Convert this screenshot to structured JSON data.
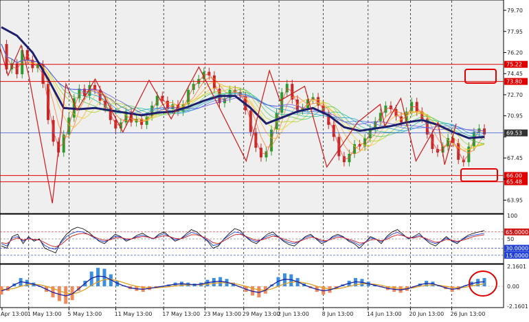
{
  "colors": {
    "background": "#ffffff",
    "plot_bg": "#efefef",
    "grid": "#000000",
    "bull_candle": "#2e9a2e",
    "bear_candle": "#c62828",
    "ma_main": "#1b1f6e",
    "level_line": "#e00000",
    "price_line": "#3355cc",
    "zigzag": "#d01818",
    "rsi_black": "#111111",
    "rsi_blue": "#1f3fd6",
    "rsi_red": "#d01818",
    "macd_pos": "#3a8fe0",
    "macd_neg": "#f08a5c",
    "macd_signal": "#e0a020",
    "macd_line": "#1b1f9e",
    "annotation": "#e00000"
  },
  "chart_data": [
    {
      "type": "line",
      "panel": "price",
      "ylim": [
        62.9,
        80.5
      ],
      "y_ticks": [
        "79.70",
        "77.95",
        "76.20",
        "74.45",
        "72.70",
        "70.95",
        "69.20",
        "67.45",
        "65.70",
        "63.95"
      ],
      "y_tick_values": [
        79.7,
        77.95,
        76.2,
        74.45,
        72.7,
        70.95,
        69.2,
        67.45,
        65.7,
        63.95
      ],
      "x_labels": [
        "Apr 13:00",
        "1 May 13:00",
        "5 May 13:00",
        "11 May 13:00",
        "17 May 13:00",
        "23 May 13:00",
        "29 May 13:00",
        "2 Jun 13:00",
        "8 Jun 13:00",
        "14 Jun 13:00",
        "20 Jun 13:00",
        "26 Jun 13:00"
      ],
      "x_range": [
        0,
        100
      ],
      "x_label_positions": [
        0.4,
        5.7,
        13.7,
        23.0,
        32.5,
        40.7,
        48.4,
        55.4,
        64.2,
        73.1,
        81.5,
        89.7
      ],
      "x_gridlines": [
        5.7,
        13.7,
        23.0,
        32.5,
        40.7,
        48.4,
        55.4,
        64.2,
        73.1,
        81.5,
        89.7
      ],
      "close_series": [
        [
          0,
          76.9
        ],
        [
          1,
          74.8
        ],
        [
          2,
          75.3
        ],
        [
          3,
          74.4
        ],
        [
          4,
          76.4
        ],
        [
          5,
          75.6
        ],
        [
          6,
          74.9
        ],
        [
          7,
          75.2
        ],
        [
          8,
          73.6
        ],
        [
          9,
          70.6
        ],
        [
          10,
          68.8
        ],
        [
          11,
          67.9
        ],
        [
          12,
          69.4
        ],
        [
          13,
          70.8
        ],
        [
          14,
          72.4
        ],
        [
          15,
          73.2
        ],
        [
          16,
          72.6
        ],
        [
          17,
          73.5
        ],
        [
          18,
          73.1
        ],
        [
          19,
          72.2
        ],
        [
          20,
          71.6
        ],
        [
          21,
          70.6
        ],
        [
          22,
          69.9
        ],
        [
          23,
          70.4
        ],
        [
          24,
          71.3
        ],
        [
          25,
          70.4
        ],
        [
          26,
          70.7
        ],
        [
          27,
          70.2
        ],
        [
          28,
          70.9
        ],
        [
          29,
          71.8
        ],
        [
          30,
          72.6
        ],
        [
          31,
          72.2
        ],
        [
          32,
          71.5
        ],
        [
          33,
          71.9
        ],
        [
          34,
          71.3
        ],
        [
          35,
          71.9
        ],
        [
          36,
          73.1
        ],
        [
          37,
          73.6
        ],
        [
          38,
          74.0
        ],
        [
          39,
          74.6
        ],
        [
          40,
          74.3
        ],
        [
          41,
          73.2
        ],
        [
          42,
          72.0
        ],
        [
          43,
          72.4
        ],
        [
          44,
          73.1
        ],
        [
          45,
          72.9
        ],
        [
          46,
          72.6
        ],
        [
          47,
          71.4
        ],
        [
          48,
          69.6
        ],
        [
          49,
          68.3
        ],
        [
          50,
          67.5
        ],
        [
          51,
          68.0
        ],
        [
          52,
          69.8
        ],
        [
          53,
          71.2
        ],
        [
          54,
          72.9
        ],
        [
          55,
          73.6
        ],
        [
          56,
          72.3
        ],
        [
          57,
          71.4
        ],
        [
          58,
          71.6
        ],
        [
          59,
          72.3
        ],
        [
          60,
          72.5
        ],
        [
          61,
          71.8
        ],
        [
          62,
          71.1
        ],
        [
          63,
          70.2
        ],
        [
          64,
          69.2
        ],
        [
          65,
          67.6
        ],
        [
          66,
          67.1
        ],
        [
          67,
          67.8
        ],
        [
          68,
          68.6
        ],
        [
          69,
          68.4
        ],
        [
          70,
          69.1
        ],
        [
          71,
          69.9
        ],
        [
          72,
          70.5
        ],
        [
          73,
          71.2
        ],
        [
          74,
          71.8
        ],
        [
          75,
          71.5
        ],
        [
          76,
          70.9
        ],
        [
          77,
          70.4
        ],
        [
          78,
          71.3
        ],
        [
          79,
          72.1
        ],
        [
          80,
          71.3
        ],
        [
          81,
          70.7
        ],
        [
          82,
          69.4
        ],
        [
          83,
          68.2
        ],
        [
          84,
          67.9
        ],
        [
          85,
          68.4
        ],
        [
          86,
          69.1
        ],
        [
          87,
          68.7
        ],
        [
          88,
          67.3
        ],
        [
          89,
          67.1
        ],
        [
          90,
          68.4
        ],
        [
          91,
          69.6
        ],
        [
          92,
          69.9
        ],
        [
          93,
          69.4
        ]
      ],
      "ma_main": [
        [
          0,
          78.3
        ],
        [
          3,
          77.6
        ],
        [
          6,
          76.2
        ],
        [
          9,
          74.0
        ],
        [
          12,
          71.6
        ],
        [
          15,
          71.5
        ],
        [
          18,
          71.6
        ],
        [
          21,
          71.4
        ],
        [
          24,
          71.2
        ],
        [
          27,
          71.0
        ],
        [
          30,
          71.2
        ],
        [
          33,
          71.3
        ],
        [
          36,
          71.7
        ],
        [
          39,
          72.2
        ],
        [
          42,
          72.6
        ],
        [
          45,
          72.6
        ],
        [
          48,
          71.6
        ],
        [
          51,
          70.3
        ],
        [
          54,
          70.8
        ],
        [
          57,
          71.3
        ],
        [
          60,
          71.6
        ],
        [
          63,
          71.0
        ],
        [
          66,
          70.0
        ],
        [
          69,
          69.7
        ],
        [
          72,
          69.9
        ],
        [
          75,
          70.1
        ],
        [
          78,
          70.4
        ],
        [
          81,
          70.6
        ],
        [
          84,
          70.2
        ],
        [
          87,
          69.6
        ],
        [
          90,
          69.1
        ],
        [
          93,
          69.2
        ]
      ],
      "zigzag": [
        [
          0,
          76.6
        ],
        [
          1.6,
          74.3
        ],
        [
          4.2,
          76.8
        ],
        [
          5.7,
          74.3
        ],
        [
          10.4,
          63.7
        ],
        [
          13.1,
          73.6
        ],
        [
          15.3,
          71.4
        ],
        [
          18.9,
          74.0
        ],
        [
          24.4,
          69.6
        ],
        [
          29.6,
          73.9
        ],
        [
          34.0,
          70.7
        ],
        [
          39.5,
          75.0
        ],
        [
          48.9,
          67.2
        ],
        [
          53.5,
          74.7
        ],
        [
          55.6,
          72.2
        ],
        [
          60.5,
          73.4
        ],
        [
          64.9,
          66.7
        ],
        [
          71.0,
          70.4
        ],
        [
          75.5,
          71.9
        ],
        [
          76.4,
          70.1
        ],
        [
          79.6,
          72.4
        ],
        [
          82.6,
          67.2
        ],
        [
          87.0,
          70.4
        ],
        [
          88.3,
          66.9
        ],
        [
          90.6,
          70.3
        ]
      ],
      "levels": [
        {
          "value": 75.22,
          "label": "75.22"
        },
        {
          "value": 73.8,
          "label": "73.80"
        },
        {
          "value": 66.0,
          "label": "66.00"
        },
        {
          "value": 65.48,
          "label": "65.48"
        }
      ],
      "current_price": {
        "value": 69.53,
        "label": "69.53"
      }
    },
    {
      "type": "line",
      "panel": "rsi",
      "ylim": [
        0,
        100
      ],
      "y_ticks": [
        "100",
        "65.0000",
        "50",
        "30.0000",
        "15.0000"
      ],
      "y_tick_values": [
        100,
        65,
        50,
        30,
        15
      ],
      "levels": [
        {
          "value": 65,
          "label": "65.0000"
        },
        {
          "value": 50,
          "label": ""
        },
        {
          "value": 30,
          "label": "30.0000"
        },
        {
          "value": 15,
          "label": "15.0000"
        }
      ],
      "series": [
        {
          "values": [
            35,
            30,
            55,
            60,
            40,
            55,
            45,
            50,
            30,
            25,
            20,
            45,
            60,
            70,
            75,
            72,
            65,
            55,
            45,
            40,
            50,
            60,
            55,
            45,
            50,
            58,
            62,
            55,
            50,
            60,
            65,
            55,
            45,
            50,
            60,
            70,
            65,
            55,
            45,
            30,
            35,
            50,
            62,
            72,
            68,
            55,
            45,
            40,
            50,
            60,
            65,
            55,
            45,
            38,
            35,
            45,
            55,
            60,
            50,
            40,
            45,
            55,
            60,
            55,
            45,
            40,
            30,
            42,
            55,
            50,
            40,
            55,
            65,
            70,
            60,
            50,
            55,
            62,
            50,
            40,
            35,
            45,
            55,
            45,
            40,
            50,
            58,
            62,
            65,
            68
          ]
        },
        {
          "values": [
            40,
            35,
            52,
            55,
            45,
            52,
            48,
            48,
            36,
            30,
            28,
            42,
            55,
            62,
            66,
            65,
            60,
            53,
            47,
            44,
            49,
            56,
            54,
            48,
            50,
            55,
            58,
            54,
            50,
            57,
            61,
            55,
            48,
            50,
            57,
            64,
            61,
            54,
            47,
            36,
            38,
            49,
            58,
            65,
            63,
            55,
            48,
            44,
            49,
            56,
            60,
            54,
            47,
            42,
            40,
            46,
            53,
            57,
            51,
            44,
            46,
            53,
            57,
            54,
            47,
            43,
            36,
            43,
            52,
            50,
            44,
            52,
            60,
            64,
            58,
            51,
            53,
            58,
            51,
            44,
            40,
            45,
            52,
            46,
            43,
            49,
            55,
            58,
            60,
            62
          ]
        },
        {
          "values": [
            42,
            40,
            48,
            52,
            48,
            50,
            49,
            48,
            42,
            36,
            33,
            38,
            48,
            56,
            60,
            62,
            60,
            55,
            50,
            47,
            48,
            52,
            53,
            50,
            50,
            53,
            55,
            54,
            51,
            54,
            57,
            55,
            51,
            50,
            54,
            59,
            59,
            55,
            50,
            42,
            40,
            46,
            53,
            59,
            60,
            56,
            51,
            47,
            48,
            52,
            56,
            54,
            50,
            46,
            43,
            45,
            50,
            54,
            52,
            47,
            46,
            50,
            54,
            53,
            49,
            46,
            41,
            42,
            48,
            49,
            46,
            49,
            55,
            59,
            57,
            53,
            52,
            55,
            52,
            47,
            43,
            44,
            49,
            47,
            45,
            47,
            51,
            55,
            57,
            59
          ]
        }
      ]
    },
    {
      "type": "bar",
      "panel": "macd",
      "ylim": [
        -2.1601,
        2.1601
      ],
      "y_ticks": [
        "2.1601",
        "0.00",
        "-2.1601"
      ],
      "y_tick_values": [
        2.1601,
        0.0,
        -2.1601
      ],
      "series": [
        {
          "values": [
            -0.9,
            -0.5,
            0.3,
            0.9,
            0.7,
            0.4,
            0.0,
            -0.6,
            -1.2,
            -1.6,
            -1.9,
            -1.5,
            -0.5,
            0.6,
            1.6,
            2.0,
            1.9,
            1.3,
            0.6,
            0.1,
            -0.3,
            -0.5,
            -0.6,
            -0.4,
            -0.2,
            0.0,
            0.2,
            0.4,
            0.5,
            0.4,
            0.3,
            0.4,
            0.7,
            0.9,
            1.0,
            0.8,
            0.4,
            -0.1,
            -0.6,
            -1.0,
            -1.2,
            -0.8,
            0.2,
            1.0,
            1.4,
            1.3,
            0.9,
            0.3,
            -0.2,
            -0.6,
            -0.9,
            -0.7,
            -0.3,
            0.2,
            0.6,
            0.9,
            0.8,
            0.5,
            0.2,
            -0.1,
            -0.4,
            -0.6,
            -0.7,
            -0.5,
            -0.1,
            0.3,
            0.6,
            0.5,
            0.1,
            -0.3,
            -0.6,
            -0.4,
            0.1,
            0.5,
            0.8,
            0.9
          ]
        },
        {
          "values": [
            -0.6,
            -0.6,
            -0.4,
            0.0,
            0.3,
            0.4,
            0.3,
            0.0,
            -0.4,
            -0.9,
            -1.3,
            -1.5,
            -1.2,
            -0.6,
            0.2,
            0.9,
            1.3,
            1.4,
            1.1,
            0.7,
            0.3,
            0.0,
            -0.2,
            -0.3,
            -0.3,
            -0.2,
            -0.1,
            0.1,
            0.2,
            0.3,
            0.3,
            0.3,
            0.4,
            0.6,
            0.7,
            0.7,
            0.6,
            0.3,
            0.0,
            -0.4,
            -0.7,
            -0.8,
            -0.5,
            0.0,
            0.5,
            0.8,
            0.9,
            0.7,
            0.4,
            0.0,
            -0.3,
            -0.5,
            -0.5,
            -0.3,
            0.0,
            0.3,
            0.5,
            0.5,
            0.4,
            0.2,
            -0.1,
            -0.3,
            -0.4,
            -0.4,
            -0.3,
            0.0,
            0.2,
            0.3,
            0.2,
            0.0,
            -0.2,
            -0.3,
            -0.2,
            0.1,
            0.3,
            0.5
          ]
        }
      ]
    }
  ]
}
